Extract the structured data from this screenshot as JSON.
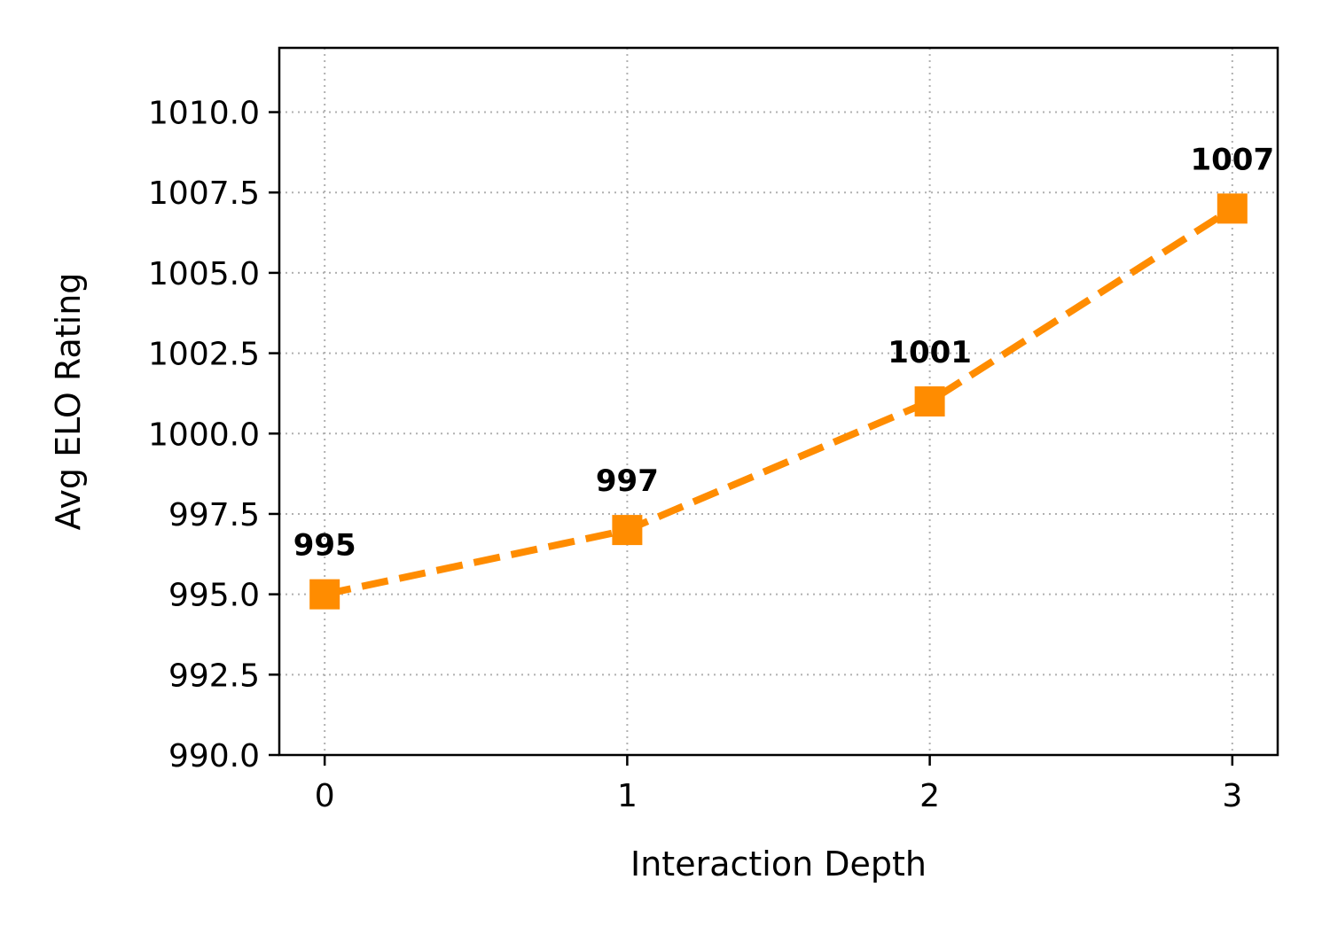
{
  "chart_data": {
    "type": "line",
    "title": "",
    "xlabel": "Interaction Depth",
    "ylabel": "Avg ELO Rating",
    "x": [
      0,
      1,
      2,
      3
    ],
    "x_ticks": [
      "0",
      "1",
      "2",
      "3"
    ],
    "xlim": [
      -0.15,
      3.15
    ],
    "ylim": [
      990.0,
      1012.0
    ],
    "y_ticks": [
      "990.0",
      "992.5",
      "995.0",
      "997.5",
      "1000.0",
      "1002.5",
      "1005.0",
      "1007.5",
      "1010.0"
    ],
    "series": [
      {
        "values": [
          995,
          997,
          1001,
          1007
        ],
        "data_labels": [
          "995",
          "997",
          "1001",
          "1007"
        ],
        "color": "#ff8c00",
        "line_style": "dashed",
        "marker": "square"
      }
    ],
    "grid": true,
    "grid_style": "dotted",
    "legend": "none"
  }
}
